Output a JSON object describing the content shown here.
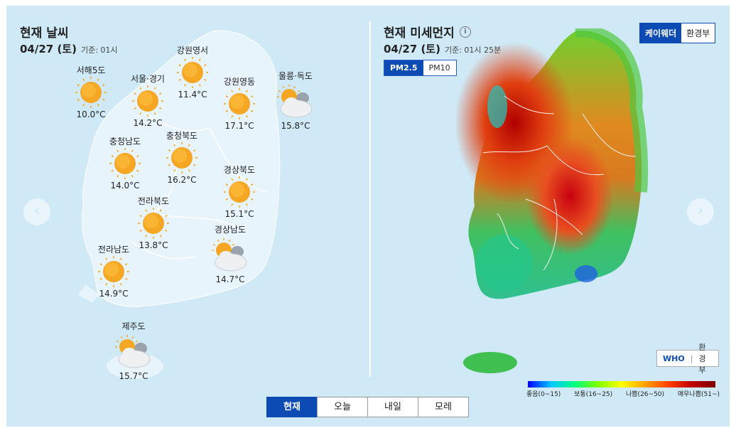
{
  "left": {
    "title": "현재 날씨",
    "date": "04/27 (토)",
    "base_time": "기준: 01시",
    "stations": [
      {
        "name": "서해5도",
        "temp": "10.0°C",
        "icon": "sun-icon"
      },
      {
        "name": "서울·경기",
        "temp": "14.2°C",
        "icon": "sun-icon"
      },
      {
        "name": "강원영서",
        "temp": "11.4°C",
        "icon": "sun-icon"
      },
      {
        "name": "강원영동",
        "temp": "17.1°C",
        "icon": "sun-icon"
      },
      {
        "name": "울릉·독도",
        "temp": "15.8°C",
        "icon": "partly-cloudy-icon"
      },
      {
        "name": "충청남도",
        "temp": "14.0°C",
        "icon": "sun-icon"
      },
      {
        "name": "충청북도",
        "temp": "16.2°C",
        "icon": "sun-icon"
      },
      {
        "name": "경상북도",
        "temp": "15.1°C",
        "icon": "sun-icon"
      },
      {
        "name": "전라북도",
        "temp": "13.8°C",
        "icon": "sun-icon"
      },
      {
        "name": "경상남도",
        "temp": "14.7°C",
        "icon": "partly-cloudy-icon"
      },
      {
        "name": "전라남도",
        "temp": "14.9°C",
        "icon": "sun-icon"
      },
      {
        "name": "제주도",
        "temp": "15.7°C",
        "icon": "partly-cloudy-icon"
      }
    ]
  },
  "right": {
    "title": "현재 미세먼지",
    "date": "04/27 (토)",
    "base_time": "기준: 01시 25분",
    "pm_toggle": [
      "PM2.5",
      "PM10"
    ],
    "source_top": [
      "케이웨더",
      "환경부"
    ],
    "source_bottom": [
      "WHO",
      "환경부"
    ],
    "legend": [
      "좋음(0~15)",
      "보통(16~25)",
      "나쁨(26~50)",
      "매우나쁨(51~)"
    ]
  },
  "tabs": [
    "현재",
    "오늘",
    "내일",
    "모레"
  ],
  "nav": {
    "prev": "‹",
    "next": "›"
  },
  "colors": {
    "accent": "#0b4bb3",
    "background": "#cfe9f6",
    "map_land": "#e8f4fb",
    "sun": "#f5a623"
  }
}
